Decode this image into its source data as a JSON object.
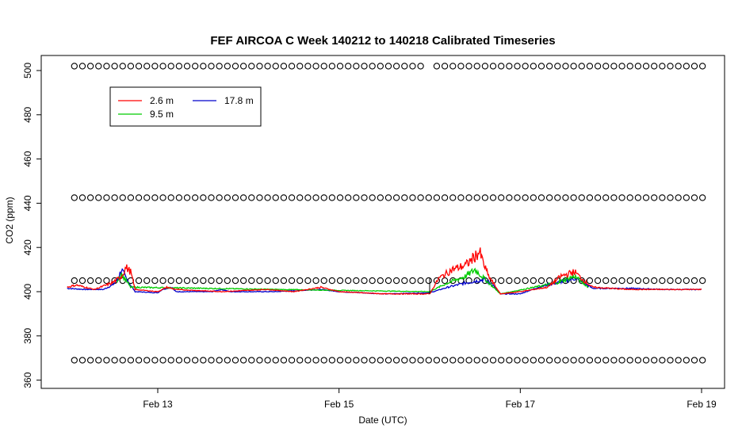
{
  "chart_data": {
    "type": "line",
    "title": "FEF AIRCOA C  Week 140212 to 140218  Calibrated Timeseries",
    "xlabel": "Date (UTC)",
    "ylabel": "CO2 (ppm)",
    "x_ticks": [
      "Feb 13",
      "Feb 15",
      "Feb 17",
      "Feb 19"
    ],
    "x_tick_days": [
      13,
      15,
      17,
      19
    ],
    "xlim_days": [
      12.0,
      19.0
    ],
    "y_ticks": [
      360,
      380,
      400,
      420,
      440,
      460,
      480,
      500
    ],
    "ylim": [
      360,
      505
    ],
    "legend": {
      "position": "top-left",
      "entries": [
        {
          "label": "2.6 m",
          "color": "#ff0000"
        },
        {
          "label": "9.5 m",
          "color": "#00cc00"
        },
        {
          "label": "17.8 m",
          "color": "#0000cc"
        }
      ]
    },
    "series": [
      {
        "name": "17.8 m",
        "color": "#0000cc",
        "points": [
          [
            12.0,
            401.5
          ],
          [
            12.2,
            401
          ],
          [
            12.4,
            401
          ],
          [
            12.5,
            403
          ],
          [
            12.55,
            405
          ],
          [
            12.6,
            410
          ],
          [
            12.65,
            406
          ],
          [
            12.75,
            400
          ],
          [
            13.0,
            399.5
          ],
          [
            13.05,
            401
          ],
          [
            13.15,
            402
          ],
          [
            13.2,
            400
          ],
          [
            13.6,
            400
          ],
          [
            13.7,
            401
          ],
          [
            13.8,
            400
          ],
          [
            14.3,
            400
          ],
          [
            14.8,
            401
          ],
          [
            15.0,
            400
          ],
          [
            15.5,
            399
          ],
          [
            16.0,
            399.5
          ],
          [
            16.2,
            402
          ],
          [
            16.4,
            404
          ],
          [
            16.6,
            405.5
          ],
          [
            16.7,
            403
          ],
          [
            16.78,
            399
          ],
          [
            17.0,
            399
          ],
          [
            17.2,
            402
          ],
          [
            17.4,
            404
          ],
          [
            17.6,
            406
          ],
          [
            17.7,
            404
          ],
          [
            17.8,
            401.5
          ],
          [
            18.2,
            401.5
          ],
          [
            18.6,
            401
          ],
          [
            19.0,
            401
          ]
        ]
      },
      {
        "name": "9.5 m",
        "color": "#00cc00",
        "points": [
          [
            12.55,
            405
          ],
          [
            12.6,
            408
          ],
          [
            12.7,
            402
          ],
          [
            16.0,
            400
          ],
          [
            16.2,
            404
          ],
          [
            16.4,
            407
          ],
          [
            16.5,
            410
          ],
          [
            16.6,
            406
          ],
          [
            16.78,
            399
          ],
          [
            17.4,
            404
          ],
          [
            17.6,
            407
          ],
          [
            17.75,
            402
          ]
        ]
      },
      {
        "name": "2.6 m",
        "color": "#ff0000",
        "points": [
          [
            12.0,
            402
          ],
          [
            12.1,
            403
          ],
          [
            12.3,
            401
          ],
          [
            12.5,
            404
          ],
          [
            12.6,
            407
          ],
          [
            12.65,
            411
          ],
          [
            12.7,
            409
          ],
          [
            12.75,
            401
          ],
          [
            13.0,
            400
          ],
          [
            13.1,
            402
          ],
          [
            13.2,
            401
          ],
          [
            13.7,
            400
          ],
          [
            14.2,
            401
          ],
          [
            14.5,
            400
          ],
          [
            14.8,
            402
          ],
          [
            15.0,
            400
          ],
          [
            15.5,
            399
          ],
          [
            15.9,
            399
          ],
          [
            16.0,
            399
          ],
          [
            16.1,
            406
          ],
          [
            16.25,
            410
          ],
          [
            16.4,
            412
          ],
          [
            16.55,
            418
          ],
          [
            16.6,
            412
          ],
          [
            16.65,
            407
          ],
          [
            16.7,
            404
          ],
          [
            16.78,
            399
          ],
          [
            17.0,
            400
          ],
          [
            17.3,
            402
          ],
          [
            17.45,
            407
          ],
          [
            17.6,
            409
          ],
          [
            17.7,
            405
          ],
          [
            17.8,
            402
          ],
          [
            18.2,
            401
          ],
          [
            18.6,
            401
          ],
          [
            19.0,
            401
          ]
        ]
      },
      {
        "name": "",
        "color": "#000000",
        "points": [
          [
            16.0,
            399
          ],
          [
            16.0,
            406
          ]
        ]
      }
    ],
    "calibration_points": {
      "symbol": "circle",
      "levels": [
        369,
        405,
        442.5,
        502
      ],
      "x_start": 12.0,
      "x_end": 19.0
    }
  }
}
